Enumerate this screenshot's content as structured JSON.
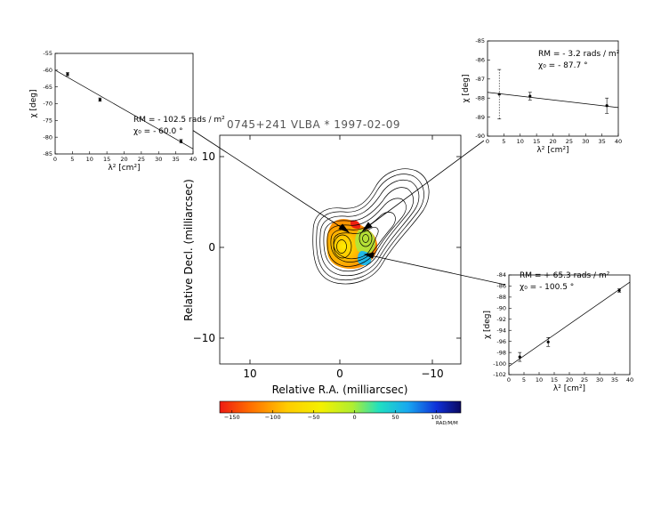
{
  "map": {
    "title": "0745+241   VLBA   *   1997-02-09",
    "xlabel": "Relative R.A. (milliarcsec)",
    "ylabel": "Relative Decl. (milliarcsec)",
    "xticks": [
      "10",
      "0",
      "−10"
    ],
    "yticks": [
      "10",
      "0",
      "−10"
    ]
  },
  "colorbar": {
    "ticks": [
      "−150",
      "−100",
      "−50",
      "0",
      "50",
      "100"
    ],
    "unit": "RAD/M/M",
    "range": [
      -165,
      130
    ]
  },
  "chart_data": [
    {
      "type": "scatter",
      "panel": "top-left",
      "xlabel": "λ² [cm²]",
      "ylabel": "χ [deg]",
      "annotation_rm": "RM = - 102.5  rads / m²",
      "annotation_chi": "χ₀ = - 60.0 °",
      "xlim": [
        0,
        40
      ],
      "ylim": [
        -85,
        -55
      ],
      "xticks": [
        0,
        5,
        10,
        15,
        20,
        25,
        30,
        35,
        40
      ],
      "yticks": [
        -55,
        -60,
        -65,
        -70,
        -75,
        -80,
        -85
      ],
      "x": [
        3.6,
        13.0,
        36.5
      ],
      "y": [
        -61.2,
        -68.8,
        -81.2
      ],
      "err": [
        0.5,
        0.5,
        0.5
      ],
      "fit": {
        "x": [
          0,
          40
        ],
        "y": [
          -60.0,
          -83.5
        ]
      }
    },
    {
      "type": "scatter",
      "panel": "top-right",
      "xlabel": "λ² [cm²]",
      "ylabel": "χ [deg]",
      "annotation_rm": "RM = - 3.2 rads / m²",
      "annotation_chi": "χ₀ = - 87.7 °",
      "xlim": [
        0,
        40
      ],
      "ylim": [
        -90,
        -85
      ],
      "xticks": [
        0,
        5,
        10,
        15,
        20,
        25,
        30,
        35,
        40
      ],
      "yticks": [
        -85,
        -86,
        -87,
        -88,
        -89,
        -90
      ],
      "x": [
        3.6,
        13.0,
        36.5
      ],
      "y": [
        -87.8,
        -87.9,
        -88.4
      ],
      "err": [
        1.3,
        0.2,
        0.4
      ],
      "fit": {
        "x": [
          0,
          40
        ],
        "y": [
          -87.7,
          -88.5
        ]
      }
    },
    {
      "type": "scatter",
      "panel": "bottom-right",
      "xlabel": "λ² [cm²]",
      "ylabel": "χ [deg]",
      "annotation_rm": "RM = + 65.3  rads / m²",
      "annotation_chi": "χ₀ = - 100.5 °",
      "xlim": [
        0,
        40
      ],
      "ylim": [
        -102,
        -84
      ],
      "xticks": [
        0,
        5,
        10,
        15,
        20,
        25,
        30,
        35,
        40
      ],
      "yticks": [
        -84,
        -86,
        -88,
        -90,
        -92,
        -94,
        -96,
        -98,
        -100,
        -102
      ],
      "x": [
        3.6,
        13.0,
        36.5
      ],
      "y": [
        -98.8,
        -96.1,
        -86.8
      ],
      "err": [
        0.8,
        0.8,
        0.3
      ],
      "fit": {
        "x": [
          0,
          40
        ],
        "y": [
          -100.5,
          -85.3
        ]
      }
    }
  ]
}
